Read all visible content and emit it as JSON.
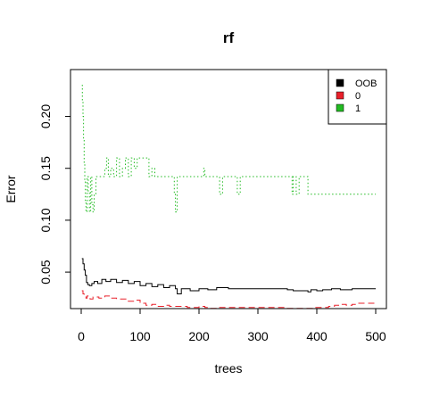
{
  "chart_data": {
    "type": "line",
    "title": "rf",
    "xlabel": "trees",
    "ylabel": "Error",
    "xlim": [
      0,
      500
    ],
    "ylim": [
      0.02,
      0.24
    ],
    "xticks": [
      0,
      100,
      200,
      300,
      400,
      500
    ],
    "yticks": [
      0.05,
      0.1,
      0.15,
      0.2
    ],
    "grid": false,
    "legend_position": "top-right",
    "series": [
      {
        "name": "OOB",
        "color": "#000000",
        "dash": "solid",
        "points": [
          [
            1,
            0.063
          ],
          [
            3,
            0.058
          ],
          [
            5,
            0.052
          ],
          [
            7,
            0.047
          ],
          [
            9,
            0.04
          ],
          [
            11,
            0.038
          ],
          [
            14,
            0.037
          ],
          [
            18,
            0.039
          ],
          [
            22,
            0.041
          ],
          [
            28,
            0.039
          ],
          [
            35,
            0.043
          ],
          [
            42,
            0.041
          ],
          [
            50,
            0.043
          ],
          [
            60,
            0.04
          ],
          [
            70,
            0.042
          ],
          [
            80,
            0.039
          ],
          [
            90,
            0.041
          ],
          [
            100,
            0.037
          ],
          [
            110,
            0.039
          ],
          [
            120,
            0.036
          ],
          [
            130,
            0.038
          ],
          [
            140,
            0.035
          ],
          [
            150,
            0.037
          ],
          [
            160,
            0.034
          ],
          [
            163,
            0.029
          ],
          [
            170,
            0.034
          ],
          [
            185,
            0.032
          ],
          [
            200,
            0.034
          ],
          [
            215,
            0.033
          ],
          [
            230,
            0.035
          ],
          [
            250,
            0.034
          ],
          [
            270,
            0.034
          ],
          [
            290,
            0.034
          ],
          [
            310,
            0.034
          ],
          [
            330,
            0.034
          ],
          [
            345,
            0.034
          ],
          [
            350,
            0.033
          ],
          [
            360,
            0.032
          ],
          [
            375,
            0.032
          ],
          [
            385,
            0.031
          ],
          [
            390,
            0.033
          ],
          [
            400,
            0.032
          ],
          [
            410,
            0.033
          ],
          [
            425,
            0.034
          ],
          [
            440,
            0.033
          ],
          [
            460,
            0.034
          ],
          [
            480,
            0.034
          ],
          [
            500,
            0.034
          ]
        ]
      },
      {
        "name": "0",
        "color": "#e8202a",
        "dash": "dashed",
        "points": [
          [
            1,
            0.032
          ],
          [
            3,
            0.029
          ],
          [
            5,
            0.027
          ],
          [
            8,
            0.025
          ],
          [
            10,
            0.027
          ],
          [
            15,
            0.024
          ],
          [
            20,
            0.026
          ],
          [
            30,
            0.025
          ],
          [
            40,
            0.027
          ],
          [
            50,
            0.025
          ],
          [
            60,
            0.024
          ],
          [
            70,
            0.024
          ],
          [
            80,
            0.022
          ],
          [
            90,
            0.023
          ],
          [
            100,
            0.02
          ],
          [
            110,
            0.018
          ],
          [
            120,
            0.019
          ],
          [
            130,
            0.017
          ],
          [
            140,
            0.018
          ],
          [
            150,
            0.017
          ],
          [
            160,
            0.017
          ],
          [
            170,
            0.017
          ],
          [
            180,
            0.016
          ],
          [
            190,
            0.016
          ],
          [
            200,
            0.017
          ],
          [
            210,
            0.016
          ],
          [
            220,
            0.015
          ],
          [
            230,
            0.016
          ],
          [
            240,
            0.016
          ],
          [
            260,
            0.016
          ],
          [
            280,
            0.016
          ],
          [
            300,
            0.016
          ],
          [
            320,
            0.016
          ],
          [
            340,
            0.016
          ],
          [
            350,
            0.015
          ],
          [
            360,
            0.015
          ],
          [
            380,
            0.015
          ],
          [
            395,
            0.016
          ],
          [
            405,
            0.016
          ],
          [
            420,
            0.017
          ],
          [
            430,
            0.018
          ],
          [
            440,
            0.019
          ],
          [
            450,
            0.018
          ],
          [
            460,
            0.019
          ],
          [
            470,
            0.02
          ],
          [
            480,
            0.02
          ],
          [
            500,
            0.02
          ]
        ]
      },
      {
        "name": "1",
        "color": "#22bb22",
        "dash": "dotted",
        "points": [
          [
            1,
            0.23
          ],
          [
            2,
            0.215
          ],
          [
            3,
            0.2
          ],
          [
            4,
            0.178
          ],
          [
            5,
            0.155
          ],
          [
            6,
            0.137
          ],
          [
            7,
            0.118
          ],
          [
            8,
            0.108
          ],
          [
            10,
            0.142
          ],
          [
            12,
            0.128
          ],
          [
            14,
            0.108
          ],
          [
            16,
            0.142
          ],
          [
            18,
            0.115
          ],
          [
            20,
            0.108
          ],
          [
            22,
            0.125
          ],
          [
            25,
            0.142
          ],
          [
            30,
            0.142
          ],
          [
            35,
            0.142
          ],
          [
            40,
            0.15
          ],
          [
            43,
            0.16
          ],
          [
            46,
            0.142
          ],
          [
            50,
            0.15
          ],
          [
            55,
            0.142
          ],
          [
            60,
            0.16
          ],
          [
            65,
            0.142
          ],
          [
            70,
            0.15
          ],
          [
            75,
            0.16
          ],
          [
            80,
            0.142
          ],
          [
            85,
            0.16
          ],
          [
            90,
            0.15
          ],
          [
            95,
            0.16
          ],
          [
            100,
            0.16
          ],
          [
            110,
            0.16
          ],
          [
            115,
            0.142
          ],
          [
            120,
            0.15
          ],
          [
            125,
            0.142
          ],
          [
            130,
            0.142
          ],
          [
            140,
            0.142
          ],
          [
            150,
            0.142
          ],
          [
            155,
            0.142
          ],
          [
            158,
            0.125
          ],
          [
            160,
            0.108
          ],
          [
            163,
            0.142
          ],
          [
            170,
            0.142
          ],
          [
            180,
            0.142
          ],
          [
            190,
            0.142
          ],
          [
            200,
            0.142
          ],
          [
            208,
            0.15
          ],
          [
            210,
            0.142
          ],
          [
            220,
            0.142
          ],
          [
            230,
            0.142
          ],
          [
            235,
            0.125
          ],
          [
            240,
            0.142
          ],
          [
            250,
            0.142
          ],
          [
            260,
            0.142
          ],
          [
            265,
            0.125
          ],
          [
            270,
            0.142
          ],
          [
            280,
            0.142
          ],
          [
            300,
            0.142
          ],
          [
            320,
            0.142
          ],
          [
            340,
            0.142
          ],
          [
            355,
            0.142
          ],
          [
            358,
            0.125
          ],
          [
            360,
            0.142
          ],
          [
            365,
            0.125
          ],
          [
            370,
            0.142
          ],
          [
            380,
            0.142
          ],
          [
            385,
            0.125
          ],
          [
            390,
            0.125
          ],
          [
            400,
            0.125
          ],
          [
            420,
            0.125
          ],
          [
            440,
            0.125
          ],
          [
            460,
            0.125
          ],
          [
            480,
            0.125
          ],
          [
            500,
            0.125
          ]
        ]
      }
    ]
  }
}
